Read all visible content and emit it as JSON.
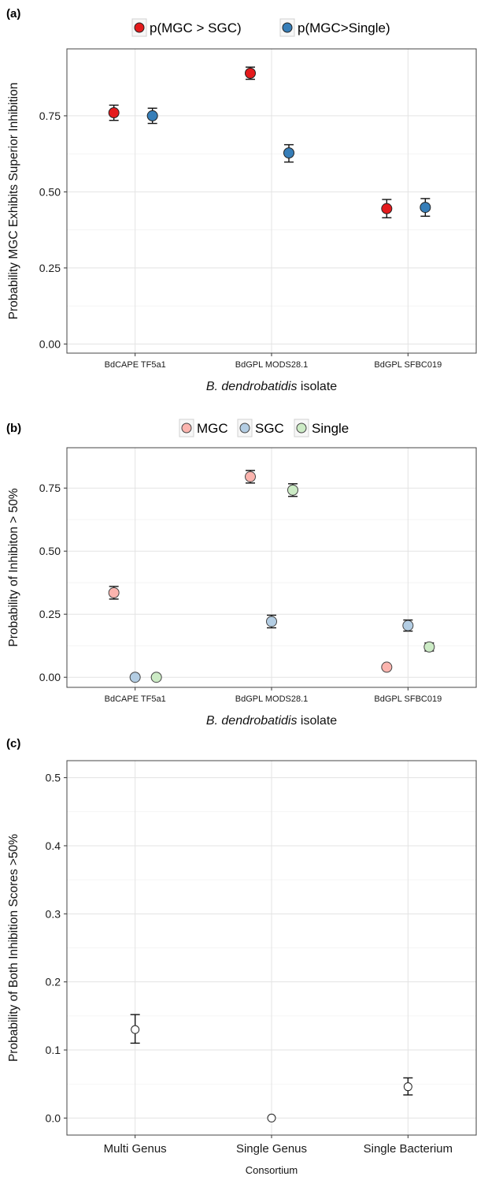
{
  "chart_data": [
    {
      "panel": "(a)",
      "type": "scatter",
      "ylabel": "Probability MGC Exhibits Superior Inhibition",
      "xlabel_italic": "B. dendrobatidis",
      "xlabel_rest": " isolate",
      "categories": [
        "BdCAPE TF5a1",
        "BdGPL MODS28.1",
        "BdGPL SFBC019"
      ],
      "ylim": [
        -0.03,
        0.97
      ],
      "yticks": [
        0,
        0.25,
        0.5,
        0.75
      ],
      "ytick_labels": [
        "0.00",
        "0.25",
        "0.50",
        "0.75"
      ],
      "grid": true,
      "legend_position": "top",
      "series": [
        {
          "name": "p(MGC > SGC)",
          "color": "#e41a1c",
          "values": [
            0.76,
            0.89,
            0.445
          ],
          "lower": [
            0.735,
            0.87,
            0.415
          ],
          "upper": [
            0.785,
            0.91,
            0.475
          ]
        },
        {
          "name": "p(MGC>Single)",
          "color": "#377eb8",
          "values": [
            0.75,
            0.628,
            0.449
          ],
          "lower": [
            0.725,
            0.598,
            0.42
          ],
          "upper": [
            0.775,
            0.655,
            0.478
          ]
        }
      ]
    },
    {
      "panel": "(b)",
      "type": "scatter",
      "ylabel": "Probability of Inhibiton > 50%",
      "xlabel_italic": "B. dendrobatidis",
      "xlabel_rest": " isolate",
      "categories": [
        "BdCAPE TF5a1",
        "BdGPL MODS28.1",
        "BdGPL SFBC019"
      ],
      "ylim": [
        -0.04,
        0.91
      ],
      "yticks": [
        0,
        0.25,
        0.5,
        0.75
      ],
      "ytick_labels": [
        "0.00",
        "0.25",
        "0.50",
        "0.75"
      ],
      "grid": true,
      "legend_position": "top",
      "series": [
        {
          "name": "MGC",
          "color": "#fbb4ae",
          "values": [
            0.335,
            0.795,
            0.04
          ],
          "lower": [
            0.31,
            0.77,
            null
          ],
          "upper": [
            0.36,
            0.82,
            null
          ]
        },
        {
          "name": "SGC",
          "color": "#b3cde3",
          "values": [
            0.0,
            0.221,
            0.205
          ],
          "lower": [
            null,
            0.196,
            0.183
          ],
          "upper": [
            null,
            0.246,
            0.227
          ]
        },
        {
          "name": "Single",
          "color": "#ccebc5",
          "values": [
            0.0,
            0.742,
            0.12
          ],
          "lower": [
            null,
            0.717,
            0.104
          ],
          "upper": [
            null,
            0.767,
            0.136
          ]
        }
      ]
    },
    {
      "panel": "(c)",
      "type": "scatter",
      "ylabel": "Probability of Both Inhibition Scores >50%",
      "xlabel": "Consortium",
      "categories": [
        "Multi Genus",
        "Single Genus",
        "Single Bacterium"
      ],
      "ylim": [
        -0.025,
        0.525
      ],
      "yticks": [
        0,
        0.1,
        0.2,
        0.3,
        0.4,
        0.5
      ],
      "ytick_labels": [
        "0.0",
        "0.1",
        "0.2",
        "0.3",
        "0.4",
        "0.5"
      ],
      "grid": true,
      "series": [
        {
          "name": "",
          "color": "#ffffff",
          "values": [
            0.13,
            0.0,
            0.046
          ],
          "lower": [
            0.11,
            null,
            0.034
          ],
          "upper": [
            0.152,
            null,
            0.059
          ]
        }
      ]
    }
  ]
}
